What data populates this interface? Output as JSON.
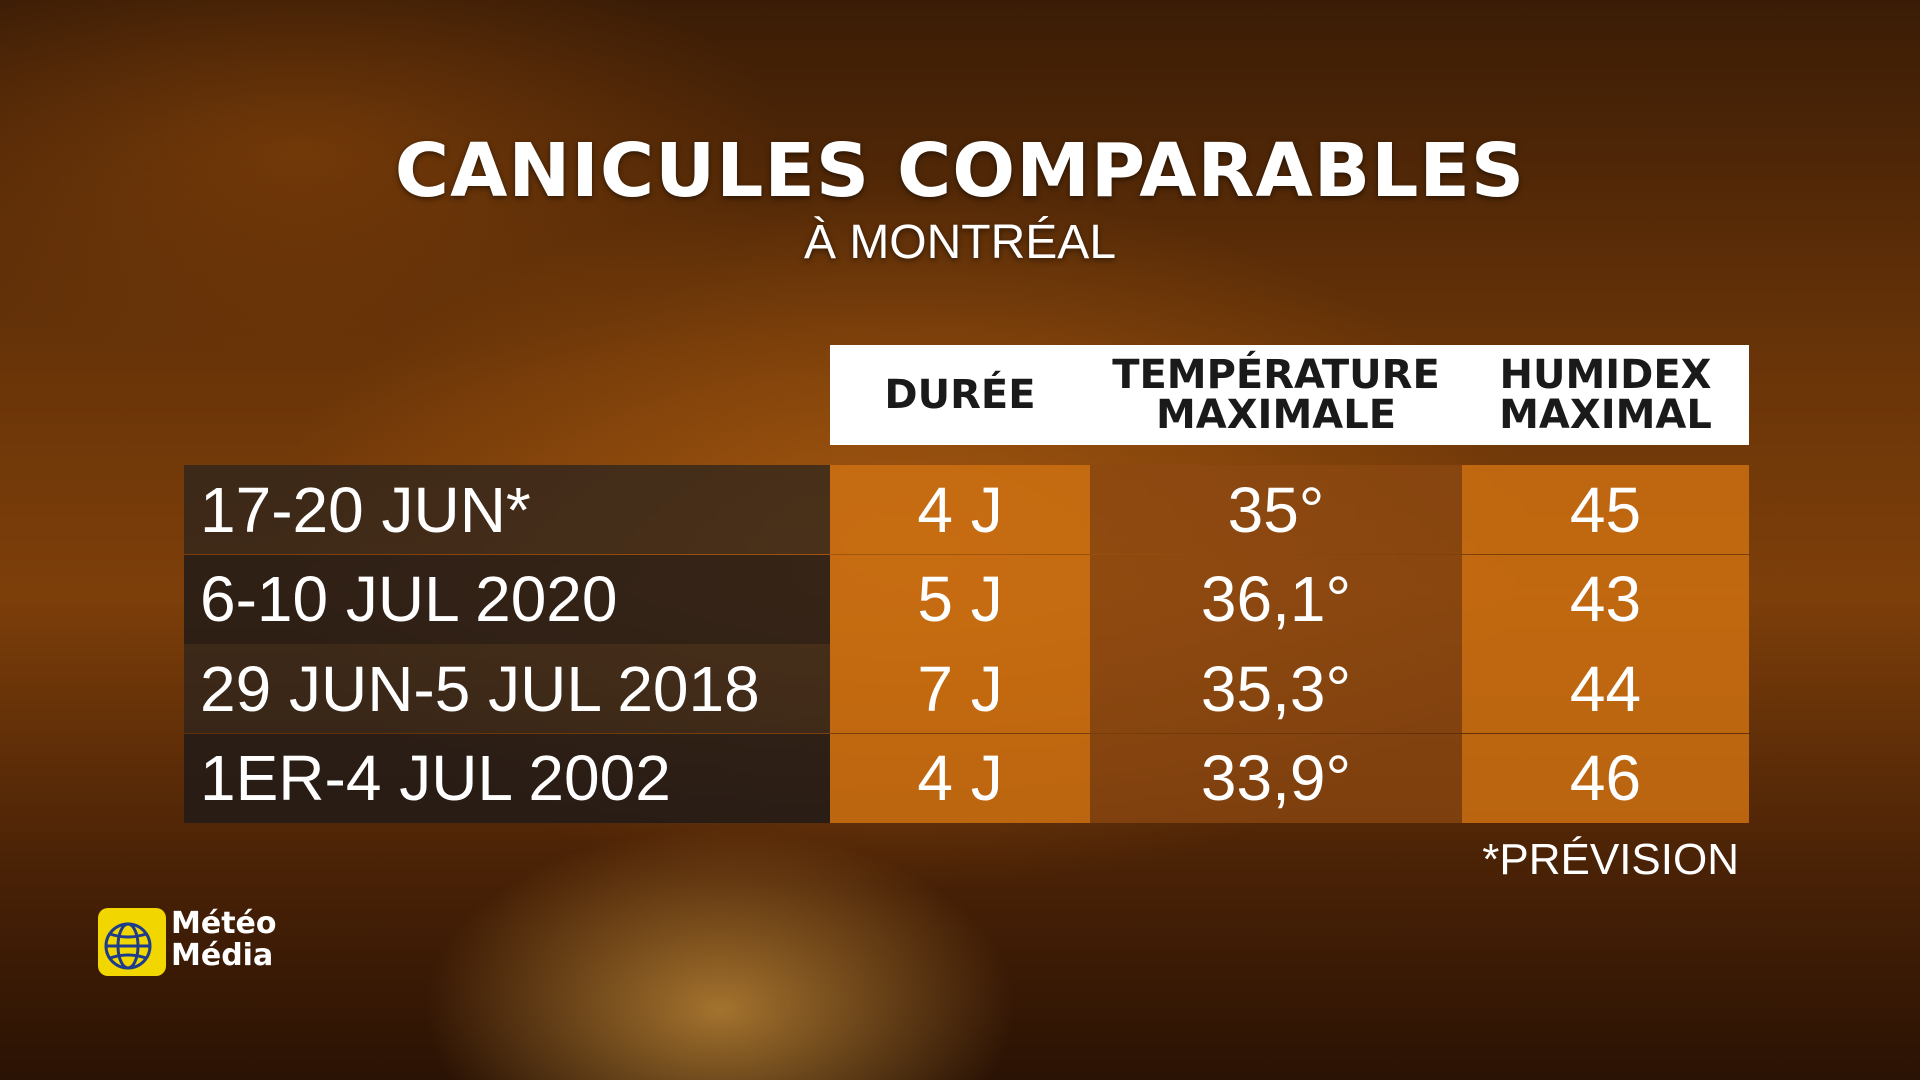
{
  "title": "CANICULES COMPARABLES",
  "subtitle": "À MONTRÉAL",
  "table": {
    "headers": [
      "DURÉE",
      "TEMPÉRATURE\nMAXIMALE",
      "HUMIDEX\nMAXIMAL"
    ],
    "rows": [
      [
        "17-20 JUN*",
        "4 J",
        "35°",
        "45"
      ],
      [
        "6-10 JUL 2020",
        "5 J",
        "36,1°",
        "43"
      ],
      [
        "29 JUN-5 JUL 2018",
        "7 J",
        "35,3°",
        "44"
      ],
      [
        "1ER-4 JUL 2002",
        "4 J",
        "33,9°",
        "46"
      ]
    ]
  },
  "footnote": "*PRÉVISION",
  "logo": "Météo\nMédia"
}
